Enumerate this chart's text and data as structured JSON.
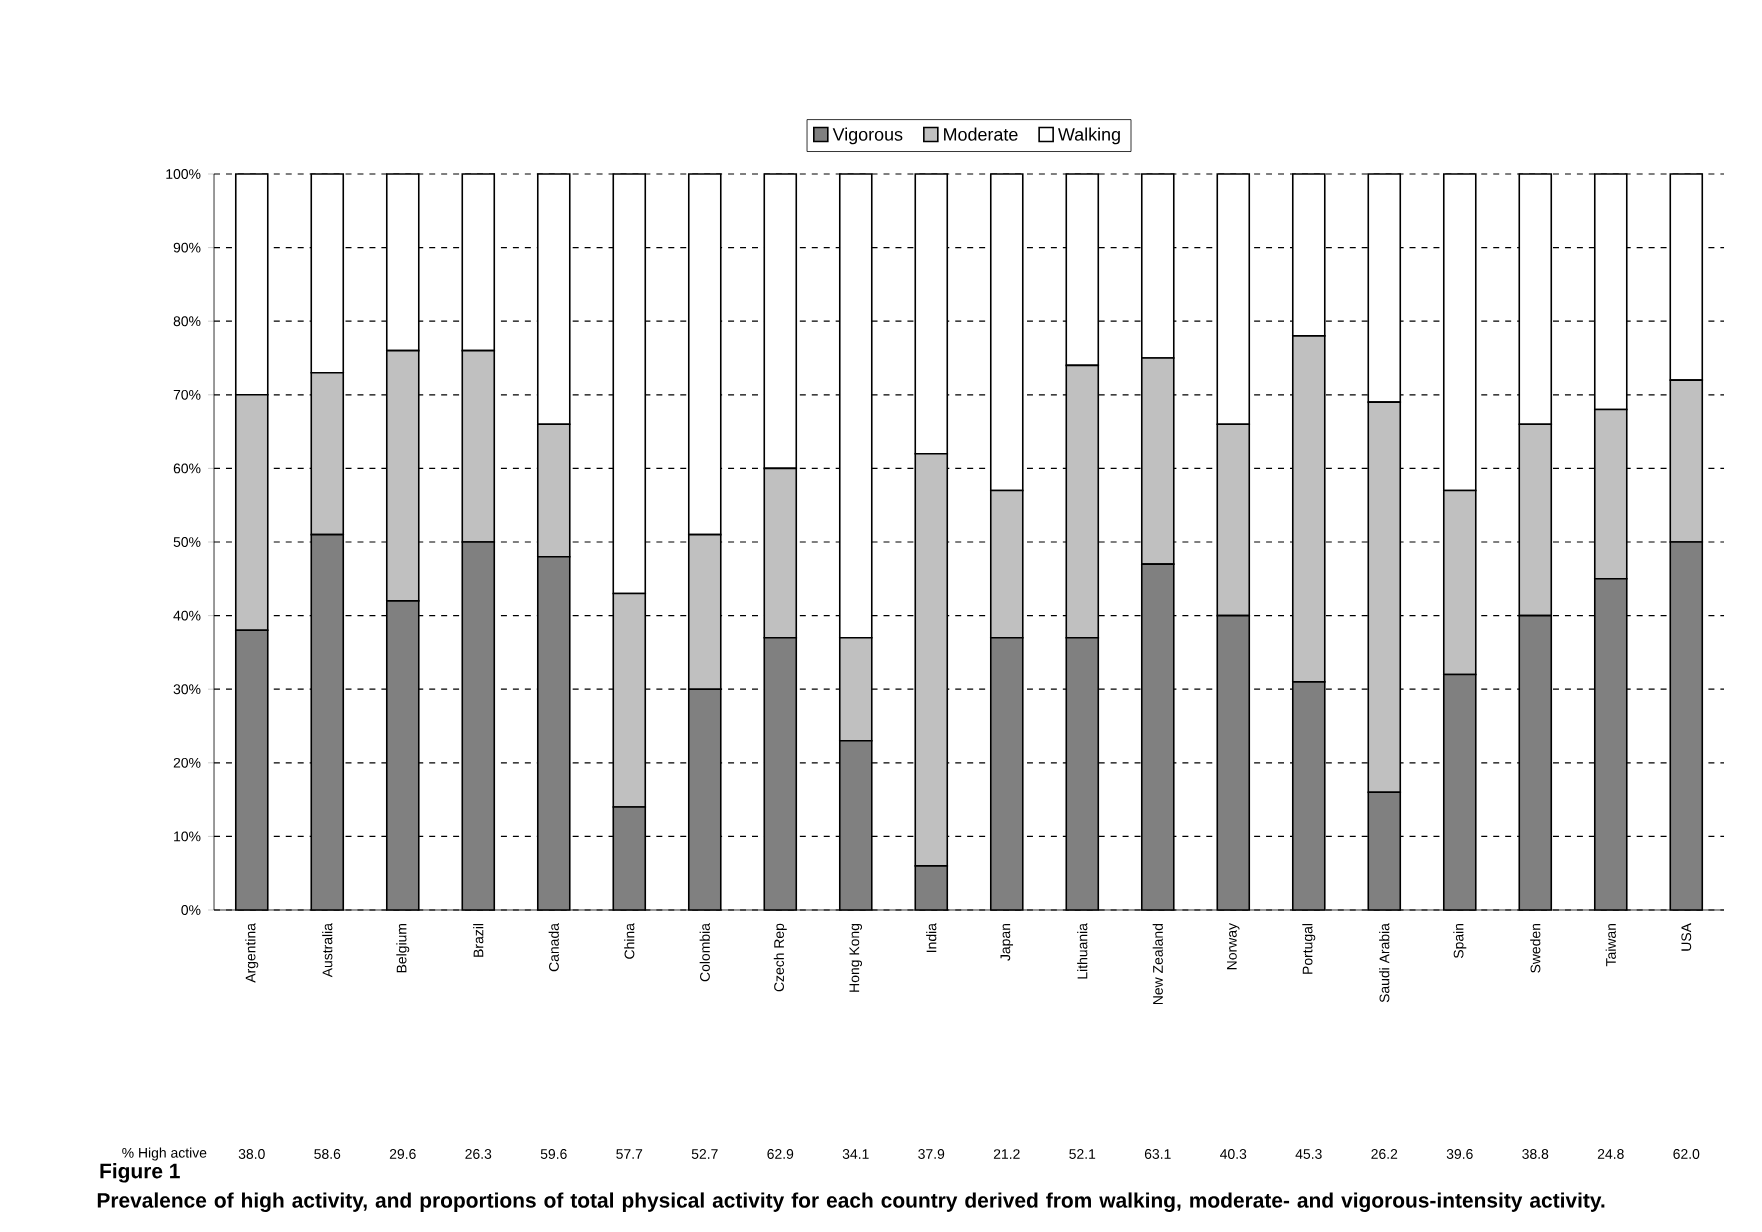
{
  "chart_data": {
    "type": "bar",
    "stacked": true,
    "title": "Figure 1",
    "categories": [
      "Argentina",
      "Australia",
      "Belgium",
      "Brazil",
      "Canada",
      "China",
      "Colombia",
      "Czech Rep",
      "Hong Kong",
      "India",
      "Japan",
      "Lithuania",
      "New Zealand",
      "Norway",
      "Portugal",
      "Saudi Arabia",
      "Spain",
      "Sweden",
      "Taiwan",
      "USA"
    ],
    "series": [
      {
        "name": "Vigorous",
        "color": "#808080",
        "values": [
          38,
          51,
          42,
          50,
          48,
          14,
          30,
          37,
          23,
          6,
          37,
          37,
          47,
          40,
          31,
          16,
          32,
          40,
          45,
          50
        ]
      },
      {
        "name": "Moderate",
        "color": "#c0c0c0",
        "values": [
          32,
          22,
          34,
          26,
          18,
          29,
          21,
          23,
          14,
          56,
          20,
          37,
          28,
          26,
          47,
          53,
          25,
          26,
          23,
          22
        ]
      },
      {
        "name": "Walking",
        "color": "#ffffff",
        "values": [
          30,
          27,
          24,
          24,
          34,
          57,
          49,
          40,
          63,
          38,
          43,
          26,
          25,
          34,
          22,
          31,
          43,
          34,
          32,
          28
        ]
      }
    ],
    "ylim": [
      0,
      100
    ],
    "yticks": [
      {
        "value": 0,
        "label": "0%"
      },
      {
        "value": 10,
        "label": "10%"
      },
      {
        "value": 20,
        "label": "20%"
      },
      {
        "value": 30,
        "label": "30%"
      },
      {
        "value": 40,
        "label": "40%"
      },
      {
        "value": 50,
        "label": "50%"
      },
      {
        "value": 60,
        "label": "60%"
      },
      {
        "value": 70,
        "label": "70%"
      },
      {
        "value": 80,
        "label": "80%"
      },
      {
        "value": 90,
        "label": "90%"
      },
      {
        "value": 100,
        "label": "100%"
      }
    ],
    "grid": "y",
    "legend": "top",
    "annotations": [
      "% High active",
      "38.0",
      "58.6",
      "29.6",
      "26.3",
      "59.6",
      "57.7",
      "52.7",
      "62.9",
      "34.1",
      "37.9",
      "21.2",
      "52.1",
      "63.1",
      "40.3",
      "45.3",
      "26.2",
      "39.6",
      "38.8",
      "24.8",
      "62.0",
      "Prevalence of high activity, and proportions of total physical activity for each country derived from walking, moderate- and vigorous-intensity activity."
    ]
  }
}
